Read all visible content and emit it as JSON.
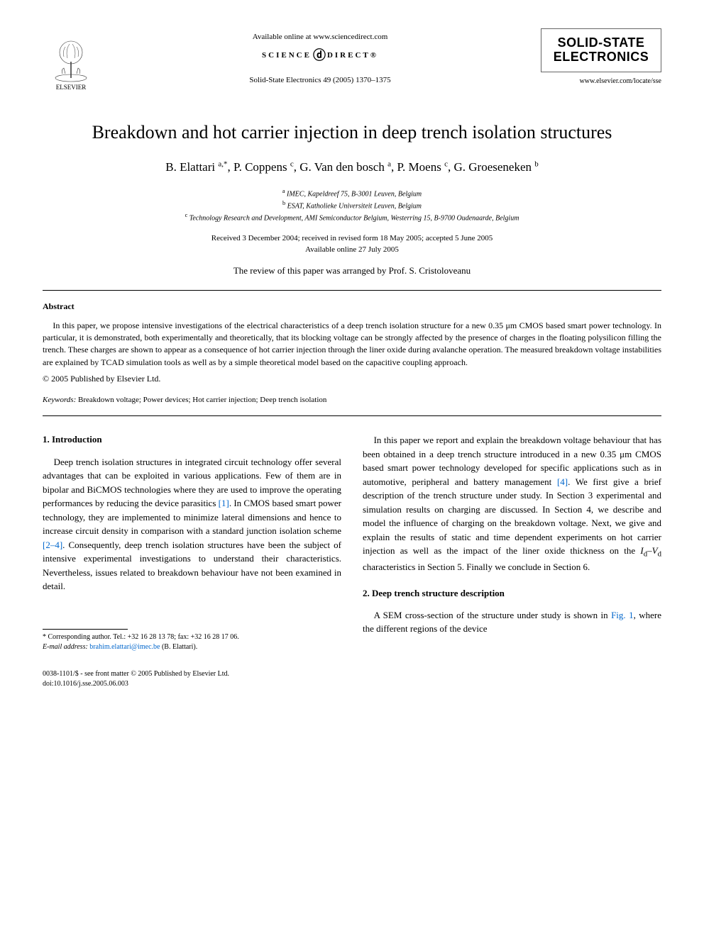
{
  "header": {
    "publisher": "ELSEVIER",
    "available_online": "Available online at www.sciencedirect.com",
    "sciencedirect_left": "SCIENCE",
    "sciencedirect_right": "DIRECT",
    "citation": "Solid-State Electronics 49 (2005) 1370–1375",
    "journal_title_line1": "SOLID-STATE",
    "journal_title_line2": "ELECTRONICS",
    "journal_url": "www.elsevier.com/locate/sse"
  },
  "article": {
    "title": "Breakdown and hot carrier injection in deep trench isolation structures",
    "authors_html": "B. Elattari <sup>a,*</sup>, P. Coppens <sup>c</sup>, G. Van den bosch <sup>a</sup>, P. Moens <sup>c</sup>, G. Groeseneken <sup>b</sup>",
    "affiliations": [
      "<sup>a</sup> IMEC, Kapeldreef 75, B-3001 Leuven, Belgium",
      "<sup>b</sup> ESAT, Katholieke Universiteit Leuven, Belgium",
      "<sup>c</sup> Technology Research and Development, AMI Semiconductor Belgium, Westerring 15, B-9700 Oudenaarde, Belgium"
    ],
    "dates_line1": "Received 3 December 2004; received in revised form 18 May 2005; accepted 5 June 2005",
    "dates_line2": "Available online 27 July 2005",
    "review_note": "The review of this paper was arranged by Prof. S. Cristoloveanu"
  },
  "abstract": {
    "heading": "Abstract",
    "text": "In this paper, we propose intensive investigations of the electrical characteristics of a deep trench isolation structure for a new 0.35 μm CMOS based smart power technology. In particular, it is demonstrated, both experimentally and theoretically, that its blocking voltage can be strongly affected by the presence of charges in the floating polysilicon filling the trench. These charges are shown to appear as a consequence of hot carrier injection through the liner oxide during avalanche operation. The measured breakdown voltage instabilities are explained by TCAD simulation tools as well as by a simple theoretical model based on the capacitive coupling approach.",
    "copyright": "© 2005 Published by Elsevier Ltd.",
    "keywords_label": "Keywords:",
    "keywords": "Breakdown voltage; Power devices; Hot carrier injection; Deep trench isolation"
  },
  "body": {
    "section1_heading": "1. Introduction",
    "section1_p1_pre": "Deep trench isolation structures in integrated circuit technology offer several advantages that can be exploited in various applications. Few of them are in bipolar and BiCMOS technologies where they are used to improve the operating performances by reducing the device parasitics ",
    "section1_p1_ref1": "[1]",
    "section1_p1_mid": ". In CMOS based smart power technology, they are implemented to minimize lateral dimensions and hence to increase circuit density in comparison with a standard junction isolation scheme ",
    "section1_p1_ref2": "[2–4]",
    "section1_p1_post": ". Consequently, deep trench isolation structures have been the subject of intensive experimental investigations to understand their characteristics. Nevertheless, issues related to breakdown behaviour have not been examined in detail.",
    "col2_p1_pre": "In this paper we report and explain the breakdown voltage behaviour that has been obtained in a deep trench structure introduced in a new 0.35 μm CMOS based smart power technology developed for specific applications such as in automotive, peripheral and battery management ",
    "col2_p1_ref": "[4]",
    "col2_p1_post": ". We first give a brief description of the trench structure under study. In Section 3 experimental and simulation results on charging are discussed. In Section 4, we describe and model the influence of charging on the breakdown voltage. Next, we give and explain the results of static and time dependent experiments on hot carrier injection as well as the impact of the liner oxide thickness on the ",
    "col2_p1_ital": "I",
    "col2_p1_sub1": "d",
    "col2_p1_dash": "–",
    "col2_p1_ital2": "V",
    "col2_p1_sub2": "d",
    "col2_p1_end": " characteristics in Section 5. Finally we conclude in Section 6.",
    "section2_heading": "2. Deep trench structure description",
    "section2_p1_pre": "A SEM cross-section of the structure under study is shown in ",
    "section2_p1_ref": "Fig. 1",
    "section2_p1_post": ", where the different regions of the device"
  },
  "footnote": {
    "corresponding": "* Corresponding author. Tel.: +32 16 28 13 78; fax: +32 16 28 17 06.",
    "email_label": "E-mail address:",
    "email": "brahim.elattari@imec.be",
    "email_suffix": "(B. Elattari)."
  },
  "bottom": {
    "issn": "0038-1101/$ - see front matter © 2005 Published by Elsevier Ltd.",
    "doi": "doi:10.1016/j.sse.2005.06.003"
  },
  "colors": {
    "link": "#0066cc",
    "text": "#000000",
    "background": "#ffffff",
    "rule": "#000000"
  }
}
